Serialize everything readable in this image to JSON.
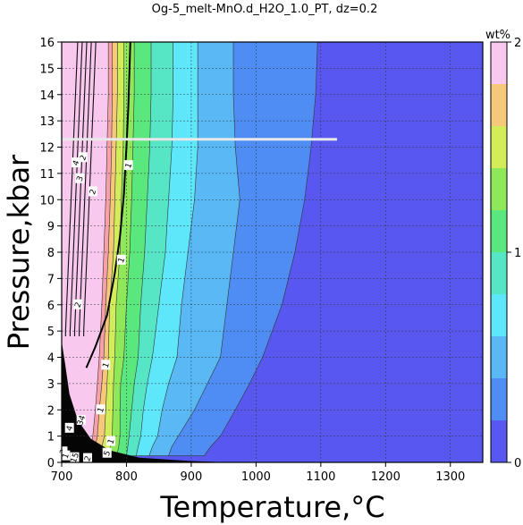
{
  "chart_data": {
    "type": "heatmap",
    "title": "Og-5_melt-MnO.d_H2O_1.0_PT, dz=0.2",
    "xlabel": "Temperature,°C",
    "ylabel": "Pressure,kbar",
    "xlim": [
      700,
      1350
    ],
    "ylim": [
      0,
      16
    ],
    "x_ticks": [
      700,
      800,
      900,
      1000,
      1100,
      1200,
      1300
    ],
    "y_ticks": [
      0,
      1,
      2,
      3,
      4,
      5,
      6,
      7,
      8,
      9,
      10,
      11,
      12,
      13,
      14,
      15,
      16
    ],
    "grid": true,
    "colorbar": {
      "label": "wt%",
      "range": [
        0,
        2
      ],
      "step": 0.2,
      "tick_labels": [
        "0",
        "1",
        "2"
      ],
      "colors": [
        "#5858f0",
        "#4f8df5",
        "#5ab8f5",
        "#5ee6fa",
        "#56e6c6",
        "#5ae87e",
        "#8fe85a",
        "#d2ec5a",
        "#f6c87a",
        "#f7a0a8",
        "#f8c8ee"
      ]
    },
    "contour_labels": [
      "1",
      "1",
      "1",
      "1",
      "2",
      "2",
      "2",
      "3",
      "4",
      "1",
      "2",
      "2",
      "34",
      "5",
      "1",
      "15",
      "4"
    ],
    "marker_line": {
      "pressure": 12.3,
      "t_start": 700,
      "t_end": 1125
    },
    "isolines_T_at_P": {
      "pressures": [
        0.25,
        0.6,
        1.0,
        2.0,
        3.0,
        4.0,
        6.0,
        8.0,
        10.0,
        12.0,
        14.0,
        16.0
      ],
      "lvl_0.2": [
        920,
        930,
        945,
        968,
        990,
        1010,
        1040,
        1060,
        1075,
        1085,
        1092,
        1095
      ],
      "lvl_0.4": [
        865,
        870,
        880,
        905,
        925,
        945,
        955,
        965,
        975,
        968,
        965,
        965
      ],
      "lvl_0.6": [
        835,
        840,
        848,
        855,
        865,
        878,
        885,
        895,
        905,
        910,
        910,
        910
      ],
      "lvl_0.8": [
        815,
        818,
        822,
        826,
        832,
        840,
        850,
        860,
        865,
        870,
        872,
        872
      ],
      "lvl_1.0": [
        800,
        802,
        804,
        808,
        812,
        818,
        822,
        828,
        832,
        836,
        838,
        838
      ],
      "lvl_1.2": [
        785,
        788,
        790,
        790,
        791,
        796,
        800,
        805,
        808,
        810,
        812,
        812
      ],
      "lvl_1.4": [
        772,
        775,
        778,
        779,
        780,
        782,
        784,
        790,
        792,
        795,
        796,
        796
      ],
      "lvl_1.6": [
        760,
        762,
        766,
        768,
        770,
        772,
        774,
        780,
        782,
        784,
        786,
        786
      ],
      "lvl_1.8": [
        750,
        752,
        755,
        758,
        762,
        765,
        768,
        772,
        775,
        777,
        778,
        778
      ],
      "lvl_2.0": [
        742,
        745,
        748,
        752,
        755,
        758,
        762,
        765,
        768,
        770,
        772,
        772
      ]
    }
  }
}
